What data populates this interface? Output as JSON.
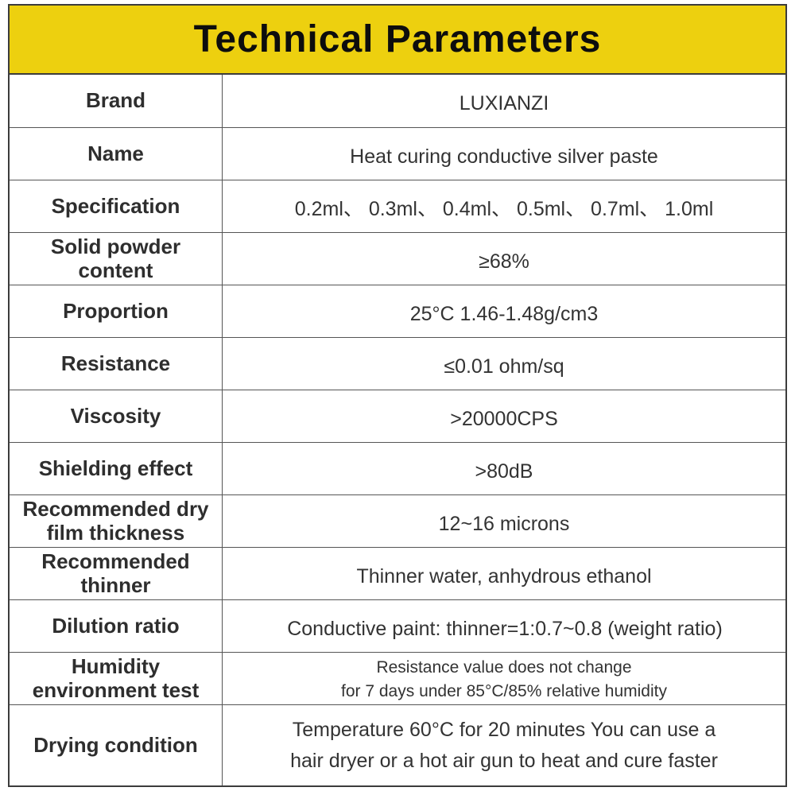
{
  "header": {
    "title": "Technical Parameters"
  },
  "table": {
    "rows": [
      {
        "label": "Brand",
        "value": "LUXIANZI"
      },
      {
        "label": "Name",
        "value": "Heat curing conductive silver paste"
      },
      {
        "label": "Specification",
        "value": "0.2ml、 0.3ml、 0.4ml、 0.5ml、 0.7ml、 1.0ml"
      },
      {
        "label": "Solid powder\ncontent",
        "value": "≥68%"
      },
      {
        "label": "Proportion",
        "value": "25°C 1.46-1.48g/cm3"
      },
      {
        "label": "Resistance",
        "value": "≤0.01 ohm/sq"
      },
      {
        "label": "Viscosity",
        "value": ">20000CPS"
      },
      {
        "label": "Shielding effect",
        "value": ">80dB"
      },
      {
        "label": "Recommended dry\nfilm thickness",
        "value": "12~16 microns"
      },
      {
        "label": "Recommended\nthinner",
        "value": "Thinner water, anhydrous ethanol"
      },
      {
        "label": "Dilution ratio",
        "value": "Conductive paint: thinner=1:0.7~0.8 (weight ratio)"
      },
      {
        "label": "Humidity\nenvironment test",
        "value": "Resistance value does not change\nfor 7 days under 85°C/85% relative humidity"
      },
      {
        "label": "Drying condition",
        "value": "Temperature 60°C for 20 minutes You can use a\nhair dryer or a hot air gun to heat and cure faster"
      }
    ]
  },
  "colors": {
    "banner_yellow": "#edd00f",
    "border": "#3c3c3c",
    "grid_line": "#555555",
    "label_text": "#2e2e2e",
    "value_text": "#333333"
  }
}
